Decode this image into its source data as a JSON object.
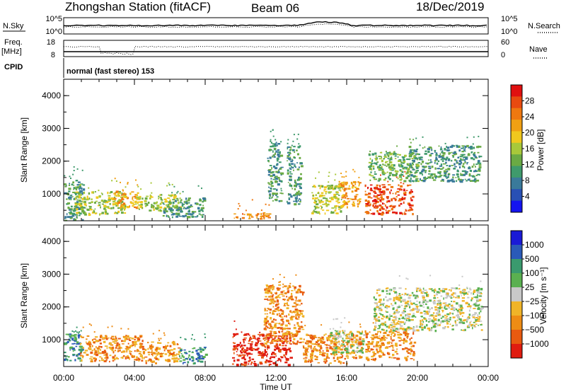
{
  "header": {
    "station": "Zhongshan Station (fitACF)",
    "beam": "Beam 06",
    "date": "18/Dec/2019",
    "cpid_label": "CPID",
    "cpid_value": "normal (fast stereo) 153"
  },
  "aux_panels": {
    "noise": {
      "left_label": "N.Sky",
      "right_label": "N.Search",
      "left_ticks": [
        "10^5",
        "10^0"
      ],
      "right_ticks": [
        "10^5",
        "10^0"
      ]
    },
    "freq": {
      "left_label_1": "Freq.",
      "left_label_2": "[MHz]",
      "right_label": "Nave",
      "left_ticks": [
        "18",
        "8"
      ],
      "right_ticks": [
        "60",
        "0"
      ]
    }
  },
  "colors": {
    "power": [
      "#1414f0",
      "#2850b4",
      "#3a7a9a",
      "#3f9a6c",
      "#6aaa44",
      "#a8c83a",
      "#f0c81e",
      "#f0a014",
      "#ee7810",
      "#e84a10",
      "#e01010"
    ],
    "velocity": [
      "#1a1ad6",
      "#2a5ab8",
      "#3a9a6e",
      "#5ab050",
      "#c8c8c8",
      "#f0b428",
      "#ee8c14",
      "#e85a10",
      "#e01c10"
    ]
  },
  "chart_data": [
    {
      "type": "heatmap",
      "name": "power",
      "ylabel": "Slant Range [km]",
      "ylim": [
        180,
        4500
      ],
      "yticks": [
        "1000",
        "2000",
        "3000",
        "4000"
      ],
      "colorbar": {
        "label": "Power [dB]",
        "range": [
          0,
          32
        ],
        "ticks": [
          "4",
          "8",
          "12",
          "16",
          "20",
          "24",
          "28"
        ]
      },
      "x": [
        "00:00",
        "04:00",
        "08:00",
        "12:00",
        "16:00",
        "20:00",
        "00:00"
      ],
      "regions": [
        {
          "t0": 0.0,
          "t1": 1.1,
          "r0": 200,
          "r1": 1450,
          "v": 9
        },
        {
          "t0": 0.6,
          "t1": 3.5,
          "r0": 400,
          "r1": 1100,
          "v": 16
        },
        {
          "t0": 2.8,
          "t1": 4.2,
          "r0": 600,
          "r1": 1100,
          "v": 23
        },
        {
          "t0": 4.0,
          "t1": 6.6,
          "r0": 500,
          "r1": 1000,
          "v": 15
        },
        {
          "t0": 5.5,
          "t1": 7.9,
          "r0": 300,
          "r1": 900,
          "v": 9
        },
        {
          "t0": 9.5,
          "t1": 11.6,
          "r0": 250,
          "r1": 450,
          "v": 26
        },
        {
          "t0": 11.5,
          "t1": 12.3,
          "r0": 800,
          "r1": 2600,
          "v": 10
        },
        {
          "t0": 12.6,
          "t1": 13.4,
          "r0": 700,
          "r1": 2500,
          "v": 11
        },
        {
          "t0": 14.0,
          "t1": 15.8,
          "r0": 400,
          "r1": 1300,
          "v": 17
        },
        {
          "t0": 15.5,
          "t1": 16.7,
          "r0": 600,
          "r1": 1400,
          "v": 21
        },
        {
          "t0": 17.0,
          "t1": 19.7,
          "r0": 400,
          "r1": 1300,
          "v": 27
        },
        {
          "t0": 17.2,
          "t1": 20.0,
          "r0": 1400,
          "r1": 2300,
          "v": 13
        },
        {
          "t0": 19.5,
          "t1": 23.5,
          "r0": 1400,
          "r1": 2500,
          "v": 9
        }
      ]
    },
    {
      "type": "heatmap",
      "name": "velocity",
      "ylabel": "Slant Range [km]",
      "xlabel": "Time UT",
      "ylim": [
        180,
        4500
      ],
      "yticks": [
        "1000",
        "2000",
        "3000",
        "4000"
      ],
      "colorbar": {
        "label": "Velocity [m s⁻¹]",
        "ticks": [
          "1000",
          "500",
          "100",
          "25",
          "−25",
          "−100",
          "−500",
          "−1000"
        ]
      },
      "x": [
        "00:00",
        "04:00",
        "08:00",
        "12:00",
        "16:00",
        "20:00",
        "00:00"
      ],
      "regions": [
        {
          "t0": 0.0,
          "t1": 1.0,
          "r0": 350,
          "r1": 1200,
          "v": 120
        },
        {
          "t0": 0.9,
          "t1": 4.5,
          "r0": 350,
          "r1": 1150,
          "v": -150
        },
        {
          "t0": 4.5,
          "t1": 6.5,
          "r0": 300,
          "r1": 950,
          "v": -100
        },
        {
          "t0": 6.5,
          "t1": 8.0,
          "r0": 300,
          "r1": 800,
          "v": 80
        },
        {
          "t0": 9.5,
          "t1": 12.8,
          "r0": 250,
          "r1": 1200,
          "v": -700
        },
        {
          "t0": 11.3,
          "t1": 13.5,
          "r0": 900,
          "r1": 2700,
          "v": -150
        },
        {
          "t0": 13.5,
          "t1": 16.8,
          "r0": 300,
          "r1": 1200,
          "v": -150
        },
        {
          "t0": 15.0,
          "t1": 17.0,
          "r0": 600,
          "r1": 1300,
          "v": 0
        },
        {
          "t0": 17.0,
          "t1": 19.8,
          "r0": 400,
          "r1": 1300,
          "v": -200
        },
        {
          "t0": 17.5,
          "t1": 23.6,
          "r0": 1300,
          "r1": 2600,
          "v": 0
        }
      ]
    }
  ]
}
